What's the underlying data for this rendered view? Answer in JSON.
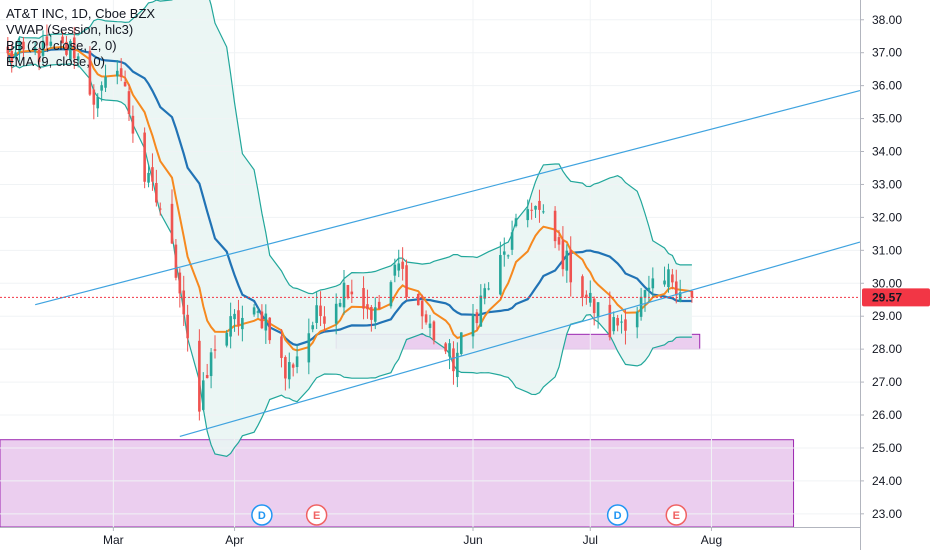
{
  "legend": {
    "line1": "AT&T INC, 1D, Cboe BZX",
    "line2": "VWAP (Session, hlc3)",
    "line3": "BB (20, close, 2, 0)",
    "line4": "EMA (9, close, 0)"
  },
  "colors": {
    "up": "#26a69a",
    "down": "#ef5350",
    "bb_band": "#22a79b",
    "bb_fill": "#e9f5f3",
    "bb_basis": "#2173b5",
    "ema": "#f6891f",
    "trendline": "#3fa3df",
    "zone_fill": "#e8c6ec",
    "zone_border": "#9c27b0",
    "price_line": "#f23645",
    "price_label_bg": "#f23645",
    "event_d": "#2196f3",
    "event_e": "#f06262"
  },
  "events": [
    {
      "type": "D",
      "date": "2020-04-08"
    },
    {
      "type": "E",
      "date": "2020-04-22"
    },
    {
      "type": "D",
      "date": "2020-07-08"
    },
    {
      "type": "E",
      "date": "2020-07-23"
    }
  ],
  "chart_data": {
    "type": "candlestick",
    "title": "AT&T INC, 1D, Cboe BZX",
    "yaxis": {
      "ylim": [
        22.6,
        38.6
      ],
      "ticks": [
        "23.00",
        "24.00",
        "25.00",
        "26.00",
        "27.00",
        "28.00",
        "29.00",
        "30.00",
        "31.00",
        "32.00",
        "33.00",
        "34.00",
        "35.00",
        "36.00",
        "37.00",
        "38.00"
      ],
      "position": "right"
    },
    "xaxis": {
      "range": [
        "2020-02-01",
        "2020-09-08"
      ],
      "ticks": [
        {
          "date": "2020-03-01",
          "label": "Mar"
        },
        {
          "date": "2020-04-01",
          "label": "Apr"
        },
        {
          "date": "2020-06-01",
          "label": "Jun"
        },
        {
          "date": "2020-07-01",
          "label": "Jul"
        },
        {
          "date": "2020-08-01",
          "label": "Aug"
        }
      ]
    },
    "last_price": 29.57,
    "last_price_label": "29.57",
    "anchors": [
      {
        "date": "2020-02-01",
        "close": 36.8
      },
      {
        "date": "2020-02-10",
        "close": 37.0
      },
      {
        "date": "2020-02-20",
        "close": 37.1
      },
      {
        "date": "2020-02-26",
        "close": 35.4
      },
      {
        "date": "2020-03-02",
        "close": 36.8
      },
      {
        "date": "2020-03-09",
        "close": 33.2
      },
      {
        "date": "2020-03-13",
        "close": 32.3
      },
      {
        "date": "2020-03-18",
        "close": 30.0
      },
      {
        "date": "2020-03-23",
        "close": 26.1
      },
      {
        "date": "2020-03-27",
        "close": 28.2
      },
      {
        "date": "2020-04-02",
        "close": 28.9
      },
      {
        "date": "2020-04-09",
        "close": 29.0
      },
      {
        "date": "2020-04-14",
        "close": 27.2
      },
      {
        "date": "2020-04-21",
        "close": 28.8
      },
      {
        "date": "2020-04-30",
        "close": 30.0
      },
      {
        "date": "2020-05-07",
        "close": 29.0
      },
      {
        "date": "2020-05-13",
        "close": 30.5
      },
      {
        "date": "2020-05-20",
        "close": 28.8
      },
      {
        "date": "2020-05-27",
        "close": 27.6
      },
      {
        "date": "2020-06-03",
        "close": 29.5
      },
      {
        "date": "2020-06-09",
        "close": 30.8
      },
      {
        "date": "2020-06-16",
        "close": 32.5
      },
      {
        "date": "2020-06-23",
        "close": 31.0
      },
      {
        "date": "2020-06-30",
        "close": 29.6
      },
      {
        "date": "2020-07-06",
        "close": 28.6
      },
      {
        "date": "2020-07-14",
        "close": 29.4
      },
      {
        "date": "2020-07-22",
        "close": 30.2
      },
      {
        "date": "2020-07-27",
        "close": 29.57
      }
    ],
    "trendlines": [
      {
        "from": {
          "date": "2020-02-10",
          "price": 29.35
        },
        "to": {
          "date": "2020-09-08",
          "price": 35.85
        }
      },
      {
        "from": {
          "date": "2020-03-18",
          "price": 25.35
        },
        "to": {
          "date": "2020-09-08",
          "price": 31.25
        }
      }
    ],
    "zones": [
      {
        "from": {
          "date": "2020-02-01",
          "price": 25.25
        },
        "to": {
          "date": "2020-08-22",
          "price": 22.6
        }
      },
      {
        "from": {
          "date": "2020-04-27",
          "price": 28.45
        },
        "to": {
          "date": "2020-07-29",
          "price": 28.0
        }
      }
    ]
  }
}
